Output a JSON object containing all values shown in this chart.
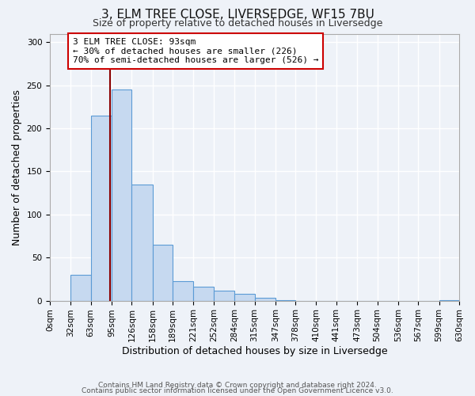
{
  "title1": "3, ELM TREE CLOSE, LIVERSEDGE, WF15 7BU",
  "title2": "Size of property relative to detached houses in Liversedge",
  "xlabel": "Distribution of detached houses by size in Liversedge",
  "ylabel": "Number of detached properties",
  "bin_edges": [
    0,
    32,
    63,
    95,
    126,
    158,
    189,
    221,
    252,
    284,
    315,
    347,
    378,
    410,
    441,
    473,
    504,
    536,
    567,
    599,
    630
  ],
  "bar_heights": [
    0,
    30,
    215,
    245,
    135,
    65,
    23,
    16,
    12,
    8,
    3,
    1,
    0,
    0,
    0,
    0,
    0,
    0,
    0,
    1
  ],
  "bar_color": "#c6d9f0",
  "bar_edge_color": "#5b9bd5",
  "property_line_x": 93,
  "property_line_color": "#8b0000",
  "annotation_text": "3 ELM TREE CLOSE: 93sqm\n← 30% of detached houses are smaller (226)\n70% of semi-detached houses are larger (526) →",
  "annotation_box_color": "#ffffff",
  "annotation_box_edge": "#cc0000",
  "ylim": [
    0,
    310
  ],
  "yticks": [
    0,
    50,
    100,
    150,
    200,
    250,
    300
  ],
  "xtick_labels": [
    "0sqm",
    "32sqm",
    "63sqm",
    "95sqm",
    "126sqm",
    "158sqm",
    "189sqm",
    "221sqm",
    "252sqm",
    "284sqm",
    "315sqm",
    "347sqm",
    "378sqm",
    "410sqm",
    "441sqm",
    "473sqm",
    "504sqm",
    "536sqm",
    "567sqm",
    "599sqm",
    "630sqm"
  ],
  "footer1": "Contains HM Land Registry data © Crown copyright and database right 2024.",
  "footer2": "Contains public sector information licensed under the Open Government Licence v3.0.",
  "bg_color": "#eef2f8",
  "grid_color": "#ffffff",
  "title_fontsize": 11,
  "subtitle_fontsize": 9,
  "axis_label_fontsize": 9,
  "tick_fontsize": 7.5,
  "footer_fontsize": 6.5,
  "annotation_fontsize": 8,
  "annotation_fontfamily": "monospace"
}
